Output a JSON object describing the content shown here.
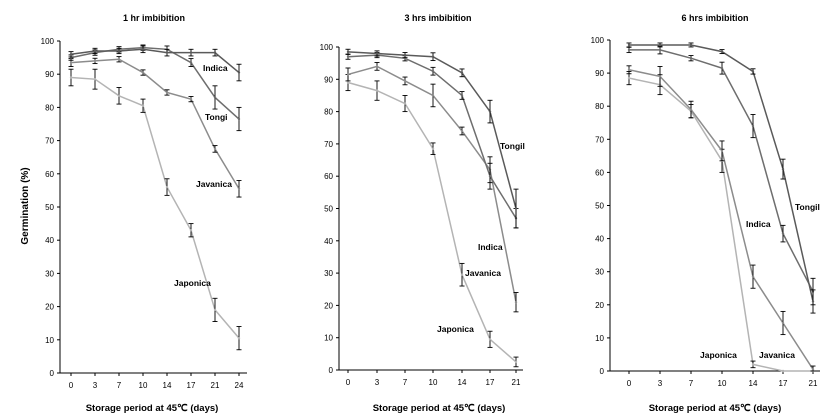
{
  "y_axis_label": "Germination (%)",
  "chart_data": [
    {
      "type": "line",
      "title": "1 hr imbibition",
      "xlabel": "Storage period at 45℃ (days)",
      "ylabel": "Germination (%)",
      "categories": [
        "0",
        "3",
        "7",
        "10",
        "14",
        "17",
        "21",
        "24"
      ],
      "ylim": [
        0,
        100
      ],
      "yticks": [
        0,
        10,
        20,
        30,
        40,
        50,
        60,
        70,
        80,
        90,
        100
      ],
      "grid": false,
      "series": [
        {
          "name": "Indica",
          "color": "#5a5a5a",
          "values": [
            96,
            97,
            97,
            97.5,
            96.5,
            96.5,
            96.5,
            90.5
          ],
          "errors": [
            0.8,
            0.8,
            0.8,
            1,
            1,
            1,
            1,
            2.5
          ]
        },
        {
          "name": "Tongi",
          "color": "#6e6e6e",
          "values": [
            95,
            96.5,
            97.5,
            98,
            97.5,
            93.5,
            83,
            76.5
          ],
          "errors": [
            0.8,
            0.8,
            0.8,
            0.8,
            1,
            1.2,
            3.5,
            3.5
          ]
        },
        {
          "name": "Javanica",
          "color": "#8c8c8c",
          "values": [
            93.5,
            94,
            94.5,
            90.5,
            84.5,
            82.5,
            67.5,
            55.5
          ],
          "errors": [
            1.2,
            0.8,
            0.8,
            0.8,
            0.8,
            0.8,
            1,
            2.5
          ]
        },
        {
          "name": "Japonica",
          "color": "#b4b4b4",
          "values": [
            89,
            88.5,
            83.5,
            80.5,
            56,
            43,
            19,
            10.5
          ],
          "errors": [
            2.5,
            3,
            2.5,
            2,
            2.5,
            2,
            3.5,
            3.5
          ]
        }
      ]
    },
    {
      "type": "line",
      "title": "3 hrs imbibition",
      "xlabel": "Storage period at 45℃ (days)",
      "ylabel": "",
      "categories": [
        "0",
        "3",
        "7",
        "10",
        "14",
        "17",
        "21"
      ],
      "ylim": [
        0,
        100
      ],
      "yticks": [
        0,
        10,
        20,
        30,
        40,
        50,
        60,
        70,
        80,
        90,
        100
      ],
      "grid": false,
      "series": [
        {
          "name": "Tongil",
          "color": "#5a5a5a",
          "values": [
            98.5,
            98,
            97.5,
            97,
            92,
            80,
            50
          ],
          "errors": [
            0.8,
            0.8,
            0.8,
            1.2,
            1.2,
            3.5,
            6
          ]
        },
        {
          "name": "Indica",
          "color": "#6e6e6e",
          "values": [
            97,
            97.5,
            96.5,
            92.5,
            85,
            60,
            47
          ],
          "errors": [
            0.8,
            0.8,
            0.8,
            1.2,
            1.2,
            4,
            3
          ]
        },
        {
          "name": "Javanica",
          "color": "#8c8c8c",
          "values": [
            91.5,
            94,
            89.5,
            85,
            74,
            62,
            21
          ],
          "errors": [
            2,
            1.2,
            1.2,
            3.5,
            1.2,
            4,
            3
          ]
        },
        {
          "name": "Japonica",
          "color": "#b4b4b4",
          "values": [
            89,
            86.5,
            82.5,
            68.5,
            29.5,
            9.5,
            2.5
          ],
          "errors": [
            2.5,
            3,
            2.5,
            1.8,
            3.5,
            2.5,
            1.5
          ]
        }
      ]
    },
    {
      "type": "line",
      "title": "6 hrs imbibition",
      "xlabel": "Storage period at 45℃ (days)",
      "ylabel": "",
      "categories": [
        "0",
        "3",
        "7",
        "10",
        "14",
        "17",
        "21"
      ],
      "ylim": [
        0,
        100
      ],
      "yticks": [
        0,
        10,
        20,
        30,
        40,
        50,
        60,
        70,
        80,
        90,
        100
      ],
      "grid": false,
      "series": [
        {
          "name": "Tongil",
          "color": "#5a5a5a",
          "values": [
            98.5,
            98.5,
            98.5,
            96.5,
            90.5,
            61,
            21
          ],
          "errors": [
            0.6,
            0.6,
            0.6,
            0.6,
            0.8,
            3,
            3.5
          ]
        },
        {
          "name": "Indica",
          "color": "#6e6e6e",
          "values": [
            97,
            97,
            94.5,
            91.5,
            74,
            41.5,
            24
          ],
          "errors": [
            0.8,
            1.2,
            0.8,
            1.8,
            3.5,
            2.5,
            4
          ]
        },
        {
          "name": "Javanica",
          "color": "#8c8c8c",
          "values": [
            91,
            89,
            79,
            66.5,
            28.5,
            14.5,
            0.5
          ],
          "errors": [
            1.2,
            3,
            2.5,
            3,
            3.5,
            3.5,
            1
          ]
        },
        {
          "name": "Japonica",
          "color": "#b4b4b4",
          "values": [
            88.5,
            86.5,
            78.5,
            63.5,
            2,
            0,
            0
          ],
          "errors": [
            2,
            3,
            2,
            3.5,
            1,
            0,
            0
          ]
        }
      ]
    }
  ]
}
